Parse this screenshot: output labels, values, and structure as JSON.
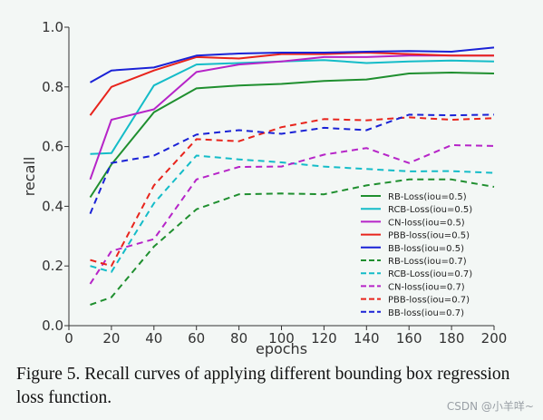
{
  "chart_data": {
    "type": "line",
    "title": "",
    "xlabel": "epochs",
    "ylabel": "recall",
    "xlim": [
      0,
      200
    ],
    "ylim": [
      0.0,
      1.0
    ],
    "x": [
      10,
      20,
      40,
      60,
      80,
      100,
      120,
      140,
      160,
      180,
      200
    ],
    "xticks": [
      "0",
      "20",
      "40",
      "60",
      "80",
      "100",
      "120",
      "140",
      "160",
      "180",
      "200"
    ],
    "yticks": [
      "0.0",
      "0.2",
      "0.4",
      "0.6",
      "0.8",
      "1.0"
    ],
    "grid": false,
    "legend_position": "lower-right",
    "series": [
      {
        "name": "RB-Loss(iou=0.5)",
        "color": "#1f8f2f",
        "dash": "solid",
        "values": [
          0.43,
          0.54,
          0.715,
          0.795,
          0.805,
          0.81,
          0.82,
          0.825,
          0.845,
          0.848,
          0.845
        ]
      },
      {
        "name": "RCB-Loss(iou=0.5)",
        "color": "#14bcc8",
        "dash": "solid",
        "values": [
          0.575,
          0.578,
          0.805,
          0.875,
          0.88,
          0.885,
          0.89,
          0.88,
          0.885,
          0.888,
          0.885
        ]
      },
      {
        "name": "CN-loss(iou=0.5)",
        "color": "#b624c8",
        "dash": "solid",
        "values": [
          0.49,
          0.69,
          0.725,
          0.85,
          0.875,
          0.885,
          0.9,
          0.9,
          0.905,
          0.905,
          0.905
        ]
      },
      {
        "name": "PBB-loss(iou=0.5)",
        "color": "#e8241c",
        "dash": "solid",
        "values": [
          0.705,
          0.8,
          0.855,
          0.9,
          0.895,
          0.91,
          0.91,
          0.915,
          0.91,
          0.905,
          0.905
        ]
      },
      {
        "name": "BB-loss(iou=0.5)",
        "color": "#1a22d6",
        "dash": "solid",
        "values": [
          0.815,
          0.855,
          0.865,
          0.905,
          0.912,
          0.915,
          0.915,
          0.918,
          0.92,
          0.918,
          0.932
        ]
      },
      {
        "name": "RB-Loss(iou=0.7)",
        "color": "#1f8f2f",
        "dash": "dashed",
        "values": [
          0.07,
          0.095,
          0.265,
          0.39,
          0.44,
          0.443,
          0.44,
          0.47,
          0.49,
          0.49,
          0.465
        ]
      },
      {
        "name": "RCB-Loss(iou=0.7)",
        "color": "#14bcc8",
        "dash": "dashed",
        "values": [
          0.2,
          0.18,
          0.41,
          0.57,
          0.557,
          0.547,
          0.533,
          0.525,
          0.517,
          0.518,
          0.512
        ]
      },
      {
        "name": "CN-loss(iou=0.7)",
        "color": "#b624c8",
        "dash": "dashed",
        "values": [
          0.14,
          0.25,
          0.29,
          0.49,
          0.532,
          0.533,
          0.573,
          0.595,
          0.545,
          0.605,
          0.602
        ]
      },
      {
        "name": "PBB-loss(iou=0.7)",
        "color": "#e8241c",
        "dash": "dashed",
        "values": [
          0.22,
          0.2,
          0.47,
          0.625,
          0.618,
          0.665,
          0.692,
          0.688,
          0.698,
          0.69,
          0.695
        ]
      },
      {
        "name": "BB-loss(iou=0.7)",
        "color": "#1a22d6",
        "dash": "dashed",
        "values": [
          0.375,
          0.545,
          0.57,
          0.64,
          0.655,
          0.643,
          0.663,
          0.655,
          0.707,
          0.705,
          0.707
        ]
      }
    ]
  },
  "caption": "Figure 5. Recall curves of applying different bounding box regression loss function.",
  "watermark": "CSDN @小羊咩~"
}
